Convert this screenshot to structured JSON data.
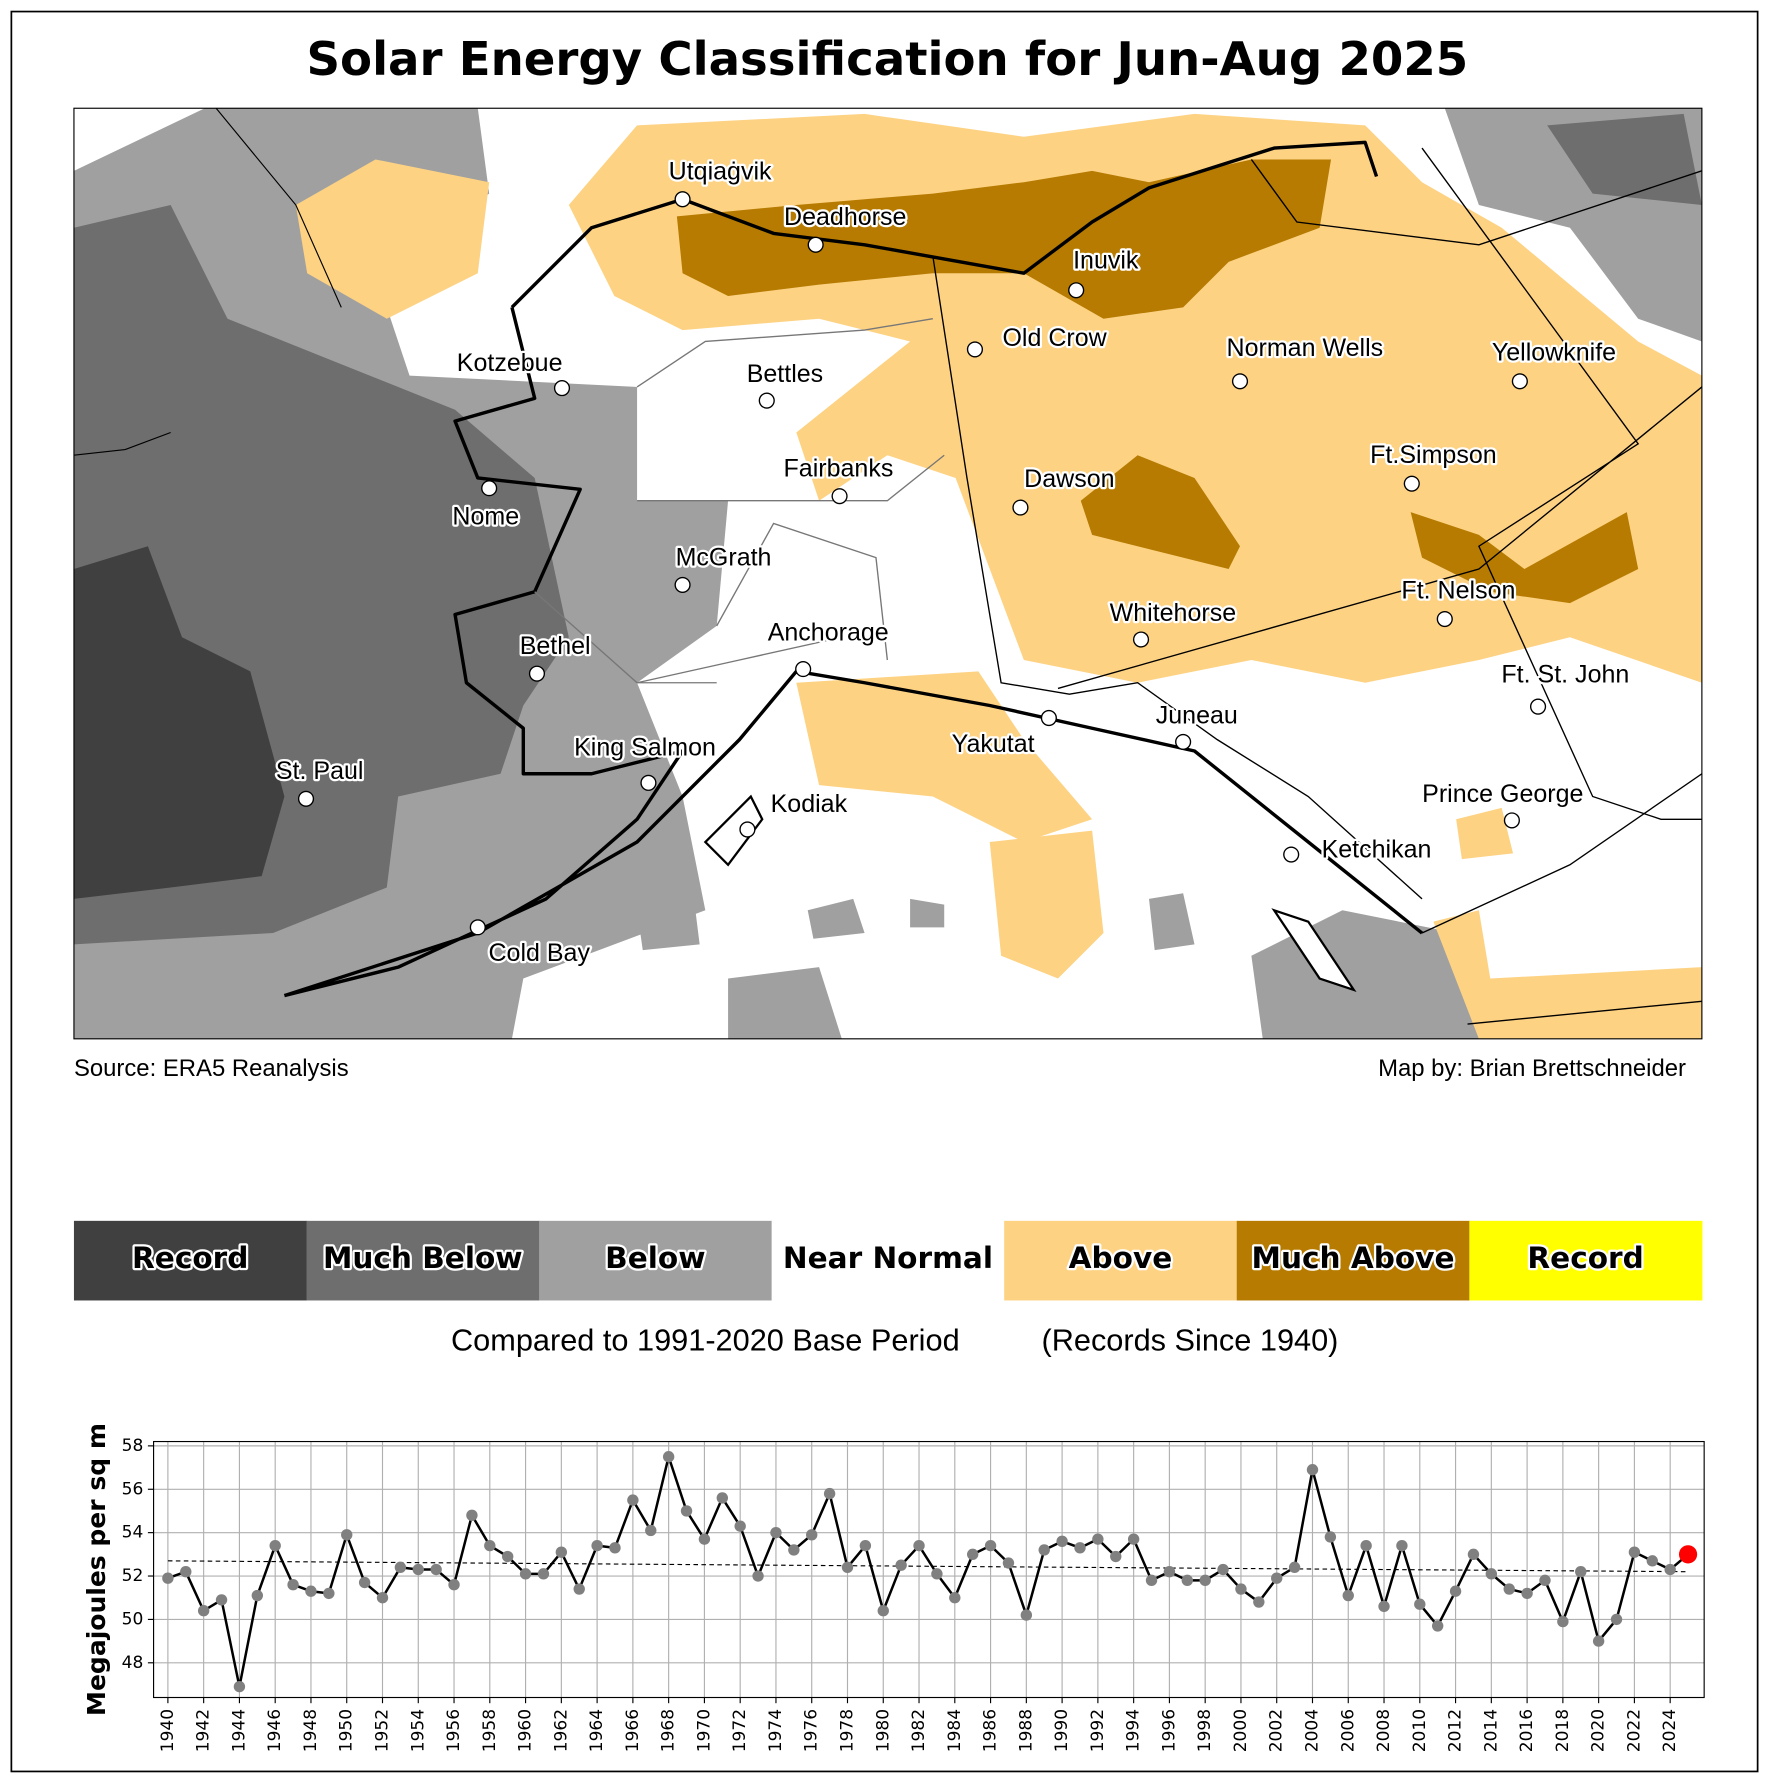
{
  "title": "Solar Energy Classification for Jun-Aug 2025",
  "map": {
    "cities": [
      "Utqiaġvik",
      "Deadhorse",
      "Inuvik",
      "Kotzebue",
      "Bettles",
      "Old Crow",
      "Norman Wells",
      "Yellowknife",
      "Nome",
      "Fairbanks",
      "Dawson",
      "Ft.Simpson",
      "McGrath",
      "Whitehorse",
      "Ft. Nelson",
      "Anchorage",
      "Bethel",
      "Ft. St. John",
      "Juneau",
      "Yakutat",
      "King Salmon",
      "St. Paul",
      "Prince George",
      "Kodiak",
      "Ketchikan",
      "Cold Bay"
    ],
    "source": "Source: ERA5 Reanalysis",
    "credit": "Map by: Brian Brettschneider"
  },
  "legend": {
    "items": [
      {
        "label": "Record",
        "color": "#404040"
      },
      {
        "label": "Much Below",
        "color": "#6e6e6e"
      },
      {
        "label": "Below",
        "color": "#a0a0a0"
      },
      {
        "label": "Near Normal",
        "color": "#ffffff"
      },
      {
        "label": "Above",
        "color": "#fdd283"
      },
      {
        "label": "Much Above",
        "color": "#b67b00"
      },
      {
        "label": "Record",
        "color": "#ffff00"
      }
    ],
    "base_period": "Compared to 1991-2020 Base Period",
    "records_note": "(Records Since 1940)"
  },
  "chart_data": {
    "type": "line",
    "y_label": "Megajoules per sq m",
    "x": [
      1940,
      1941,
      1942,
      1943,
      1944,
      1945,
      1946,
      1947,
      1948,
      1949,
      1950,
      1951,
      1952,
      1953,
      1954,
      1955,
      1956,
      1957,
      1958,
      1959,
      1960,
      1961,
      1962,
      1963,
      1964,
      1965,
      1966,
      1967,
      1968,
      1969,
      1970,
      1971,
      1972,
      1973,
      1974,
      1975,
      1976,
      1977,
      1978,
      1979,
      1980,
      1981,
      1982,
      1983,
      1984,
      1985,
      1986,
      1987,
      1988,
      1989,
      1990,
      1991,
      1992,
      1993,
      1994,
      1995,
      1996,
      1997,
      1998,
      1999,
      2000,
      2001,
      2002,
      2003,
      2004,
      2005,
      2006,
      2007,
      2008,
      2009,
      2010,
      2011,
      2012,
      2013,
      2014,
      2015,
      2016,
      2017,
      2018,
      2019,
      2020,
      2021,
      2022,
      2023,
      2024,
      2025
    ],
    "values": [
      51.9,
      52.2,
      50.4,
      50.9,
      46.9,
      51.1,
      53.4,
      51.6,
      51.3,
      51.2,
      53.9,
      51.7,
      51.0,
      52.4,
      52.3,
      52.3,
      51.6,
      54.8,
      53.4,
      52.9,
      52.1,
      52.1,
      53.1,
      51.4,
      53.4,
      53.3,
      55.5,
      54.1,
      57.5,
      55.0,
      53.7,
      55.6,
      54.3,
      52.0,
      54.0,
      53.2,
      53.9,
      55.8,
      52.4,
      53.4,
      50.4,
      52.5,
      53.4,
      52.1,
      51.0,
      53.0,
      53.4,
      52.6,
      50.2,
      53.2,
      53.6,
      53.3,
      53.7,
      52.9,
      53.7,
      51.8,
      52.2,
      51.8,
      51.8,
      52.3,
      51.4,
      50.8,
      51.9,
      52.4,
      56.9,
      53.8,
      51.1,
      53.4,
      50.6,
      53.4,
      50.7,
      49.7,
      51.3,
      53.0,
      52.1,
      51.4,
      51.2,
      51.8,
      49.9,
      52.2,
      49.0,
      50.0,
      53.1,
      52.7,
      52.3,
      53.0
    ],
    "color": "#000000",
    "marker_color": "#808080",
    "highlight_color": "#ff0000",
    "highlight_index": 85,
    "trend_line": {
      "x": [
        1940,
        2025
      ],
      "values": [
        52.7,
        52.2
      ],
      "color": "#000000"
    },
    "xlim": [
      1939.2,
      2025.9
    ],
    "ylim": [
      46.4,
      58.2
    ],
    "xticks": [
      1940,
      1942,
      1944,
      1946,
      1948,
      1950,
      1952,
      1954,
      1956,
      1958,
      1960,
      1962,
      1964,
      1966,
      1968,
      1970,
      1972,
      1974,
      1976,
      1978,
      1980,
      1982,
      1984,
      1986,
      1988,
      1990,
      1992,
      1994,
      1996,
      1998,
      2000,
      2002,
      2004,
      2006,
      2008,
      2010,
      2012,
      2014,
      2016,
      2018,
      2020,
      2022,
      2024
    ],
    "yticks": [
      48,
      50,
      52,
      54,
      56,
      58
    ],
    "grid": true
  }
}
